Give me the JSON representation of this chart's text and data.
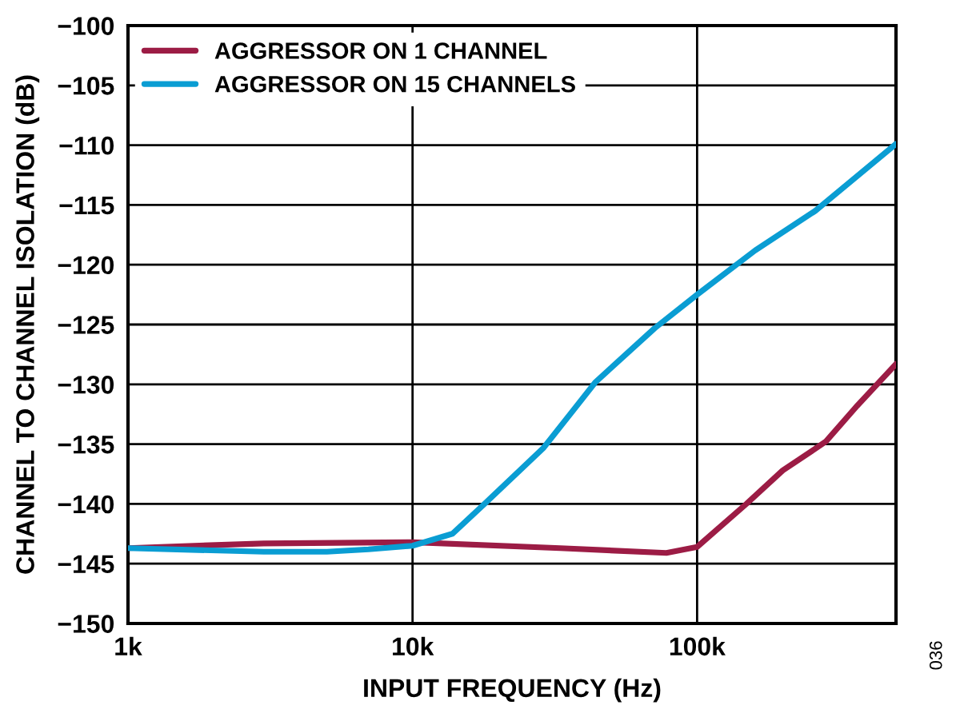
{
  "chart_data": {
    "type": "line",
    "xlabel": "INPUT FREQUENCY (Hz)",
    "ylabel": "CHANNEL TO CHANNEL ISOLATION (dB)",
    "log": "x",
    "xlim": [
      1000,
      500000
    ],
    "ylim": [
      -150,
      -100
    ],
    "xticks": [
      {
        "value": 1000,
        "label": "1k"
      },
      {
        "value": 10000,
        "label": "10k"
      },
      {
        "value": 100000,
        "label": "100k"
      }
    ],
    "yticks": [
      -150,
      -145,
      -140,
      -135,
      -130,
      -125,
      -120,
      -115,
      -110,
      -105,
      -100
    ],
    "grid": true,
    "legend": "top left",
    "line_style": "solid",
    "marker": "none",
    "annotations": [
      "036"
    ],
    "series": [
      {
        "name": "AGGRESSOR ON 1 CHANNEL",
        "color": "#9c1c45",
        "x": [
          1000,
          3000,
          10000,
          33000,
          78000,
          100000,
          149000,
          200000,
          283000,
          365000,
          500000
        ],
        "values": [
          -143.7,
          -143.3,
          -143.2,
          -143.7,
          -144.1,
          -143.6,
          -140,
          -137.2,
          -134.8,
          -131.8,
          -128.3
        ]
      },
      {
        "name": "AGGRESSOR ON 15 CHANNELS",
        "color": "#0a9dd3",
        "x": [
          1000,
          3000,
          5000,
          7000,
          10000,
          13800,
          17900,
          28900,
          44000,
          71000,
          100000,
          160000,
          260000,
          500000
        ],
        "values": [
          -143.7,
          -144,
          -144,
          -143.8,
          -143.5,
          -142.5,
          -140,
          -135.3,
          -129.8,
          -125.3,
          -122.5,
          -118.8,
          -115.5,
          -109.9
        ]
      }
    ]
  }
}
